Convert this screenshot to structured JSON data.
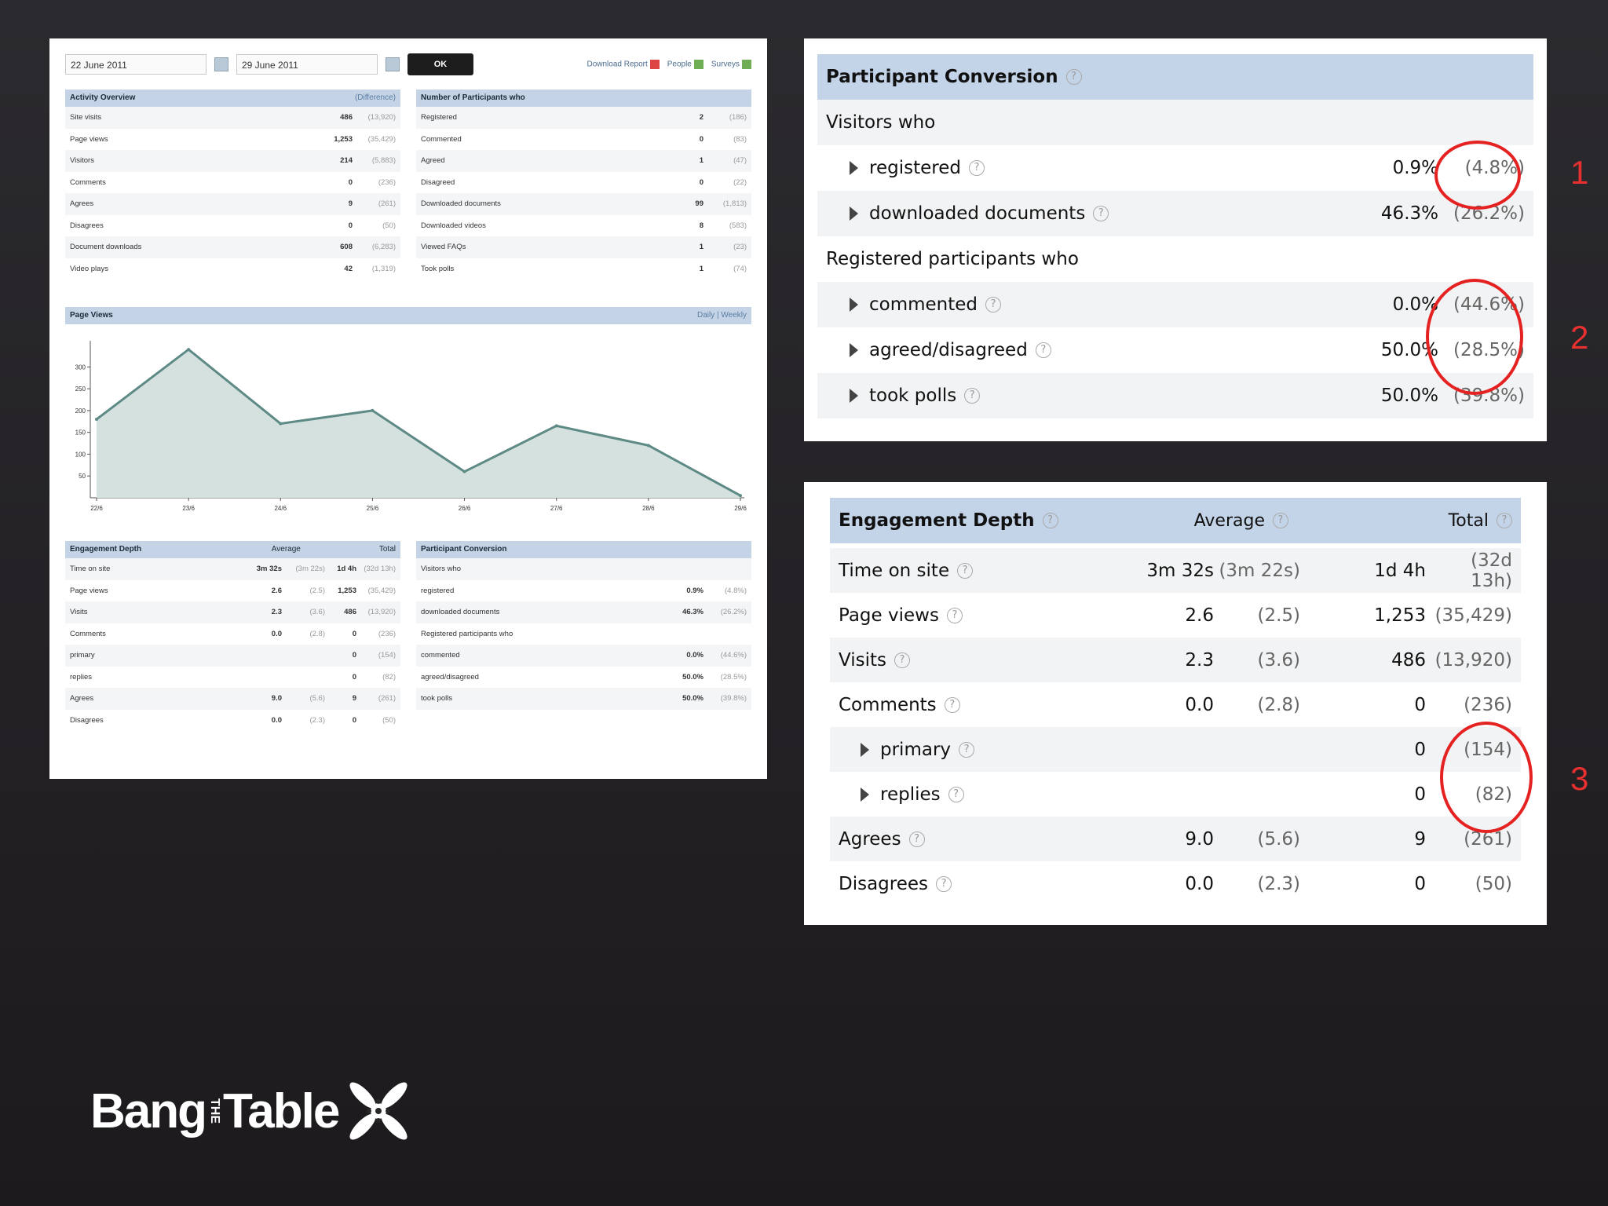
{
  "dashboard": {
    "date_from": "22 June 2011",
    "date_to": "29 June 2011",
    "ok_label": "OK",
    "links": [
      "Download Report",
      "People",
      "Surveys"
    ],
    "activity": {
      "title": "Activity Overview",
      "right": "(Difference)",
      "rows": [
        {
          "label": "Site visits",
          "v": "486",
          "p": "(13,920)"
        },
        {
          "label": "Page views",
          "v": "1,253",
          "p": "(35,429)"
        },
        {
          "label": "Visitors",
          "v": "214",
          "p": "(5,883)"
        },
        {
          "label": "Comments",
          "v": "0",
          "p": "(236)"
        },
        {
          "label": "Agrees",
          "v": "9",
          "p": "(261)"
        },
        {
          "label": "Disagrees",
          "v": "0",
          "p": "(50)"
        },
        {
          "label": "Document downloads",
          "v": "608",
          "p": "(6,283)"
        },
        {
          "label": "Video plays",
          "v": "42",
          "p": "(1,319)"
        }
      ]
    },
    "participants": {
      "title": "Number of Participants who",
      "rows": [
        {
          "label": "Registered",
          "v": "2",
          "p": "(186)"
        },
        {
          "label": "Commented",
          "v": "0",
          "p": "(83)"
        },
        {
          "label": "Agreed",
          "v": "1",
          "p": "(47)"
        },
        {
          "label": "Disagreed",
          "v": "0",
          "p": "(22)"
        },
        {
          "label": "Downloaded documents",
          "v": "99",
          "p": "(1,813)"
        },
        {
          "label": "Downloaded videos",
          "v": "8",
          "p": "(583)"
        },
        {
          "label": "Viewed FAQs",
          "v": "1",
          "p": "(23)"
        },
        {
          "label": "Took polls",
          "v": "1",
          "p": "(74)"
        }
      ]
    },
    "page_views_title": "Page Views",
    "page_views_right": "Daily | Weekly",
    "chart_data": {
      "type": "area",
      "x": [
        "22/6",
        "23/6",
        "24/6",
        "25/6",
        "26/6",
        "27/6",
        "28/6",
        "29/6"
      ],
      "y": [
        180,
        340,
        170,
        200,
        60,
        165,
        120,
        5
      ],
      "yticks": [
        "300",
        "250",
        "200",
        "150",
        "100",
        "50"
      ],
      "ylim": [
        0,
        360
      ]
    },
    "engagement_mini": {
      "title": "Engagement Depth",
      "col_avg": "Average",
      "col_total": "Total",
      "rows": [
        {
          "label": "Time on site",
          "a": "3m 32s",
          "ap": "(3m 22s)",
          "t": "1d 4h",
          "tp": "(32d 13h)"
        },
        {
          "label": "Page views",
          "a": "2.6",
          "ap": "(2.5)",
          "t": "1,253",
          "tp": "(35,429)"
        },
        {
          "label": "Visits",
          "a": "2.3",
          "ap": "(3.6)",
          "t": "486",
          "tp": "(13,920)"
        },
        {
          "label": "Comments",
          "a": "0.0",
          "ap": "(2.8)",
          "t": "0",
          "tp": "(236)"
        },
        {
          "label": "primary",
          "a": "",
          "ap": "",
          "t": "0",
          "tp": "(154)"
        },
        {
          "label": "replies",
          "a": "",
          "ap": "",
          "t": "0",
          "tp": "(82)"
        },
        {
          "label": "Agrees",
          "a": "9.0",
          "ap": "(5.6)",
          "t": "9",
          "tp": "(261)"
        },
        {
          "label": "Disagrees",
          "a": "0.0",
          "ap": "(2.3)",
          "t": "0",
          "tp": "(50)"
        }
      ]
    },
    "conversion_mini": {
      "title": "Participant Conversion",
      "rows": [
        {
          "label": "Visitors who",
          "v": "",
          "p": ""
        },
        {
          "label": "registered",
          "v": "0.9%",
          "p": "(4.8%)"
        },
        {
          "label": "downloaded documents",
          "v": "46.3%",
          "p": "(26.2%)"
        },
        {
          "label": "Registered participants who",
          "v": "",
          "p": ""
        },
        {
          "label": "commented",
          "v": "0.0%",
          "p": "(44.6%)"
        },
        {
          "label": "agreed/disagreed",
          "v": "50.0%",
          "p": "(28.5%)"
        },
        {
          "label": "took polls",
          "v": "50.0%",
          "p": "(39.8%)"
        }
      ]
    }
  },
  "conversion": {
    "title": "Participant Conversion",
    "help": "?",
    "visitors_label": "Visitors who",
    "registered_label": "Registered participants who",
    "visitor_rows": [
      {
        "label": "registered",
        "pct": "0.9%",
        "par": "(4.8%)"
      },
      {
        "label": "downloaded documents",
        "pct": "46.3%",
        "par": "(26.2%)"
      }
    ],
    "participant_rows": [
      {
        "label": "commented",
        "pct": "0.0%",
        "par": "(44.6%)"
      },
      {
        "label": "agreed/disagreed",
        "pct": "50.0%",
        "par": "(28.5%)"
      },
      {
        "label": "took polls",
        "pct": "50.0%",
        "par": "(39.8%)"
      }
    ]
  },
  "engagement": {
    "title": "Engagement Depth",
    "col_average": "Average",
    "col_total": "Total",
    "help": "?",
    "rows": [
      {
        "label": "Time on site",
        "a1": "3m 32s",
        "a2": "(3m 22s)",
        "t1": "1d 4h",
        "t2": "(32d 13h)",
        "sub": false
      },
      {
        "label": "Page views",
        "a1": "2.6",
        "a2": "(2.5)",
        "t1": "1,253",
        "t2": "(35,429)",
        "sub": false
      },
      {
        "label": "Visits",
        "a1": "2.3",
        "a2": "(3.6)",
        "t1": "486",
        "t2": "(13,920)",
        "sub": false
      },
      {
        "label": "Comments",
        "a1": "0.0",
        "a2": "(2.8)",
        "t1": "0",
        "t2": "(236)",
        "sub": false
      },
      {
        "label": "primary",
        "a1": "",
        "a2": "",
        "t1": "0",
        "t2": "(154)",
        "sub": true
      },
      {
        "label": "replies",
        "a1": "",
        "a2": "",
        "t1": "0",
        "t2": "(82)",
        "sub": true
      },
      {
        "label": "Agrees",
        "a1": "9.0",
        "a2": "(5.6)",
        "t1": "9",
        "t2": "(261)",
        "sub": false
      },
      {
        "label": "Disagrees",
        "a1": "0.0",
        "a2": "(2.3)",
        "t1": "0",
        "t2": "(50)",
        "sub": false
      }
    ]
  },
  "annotations": [
    "1",
    "2",
    "3"
  ],
  "annotation_color": "#e52222",
  "logo": {
    "left": "Bang",
    "the": "THE",
    "right": "Table"
  }
}
